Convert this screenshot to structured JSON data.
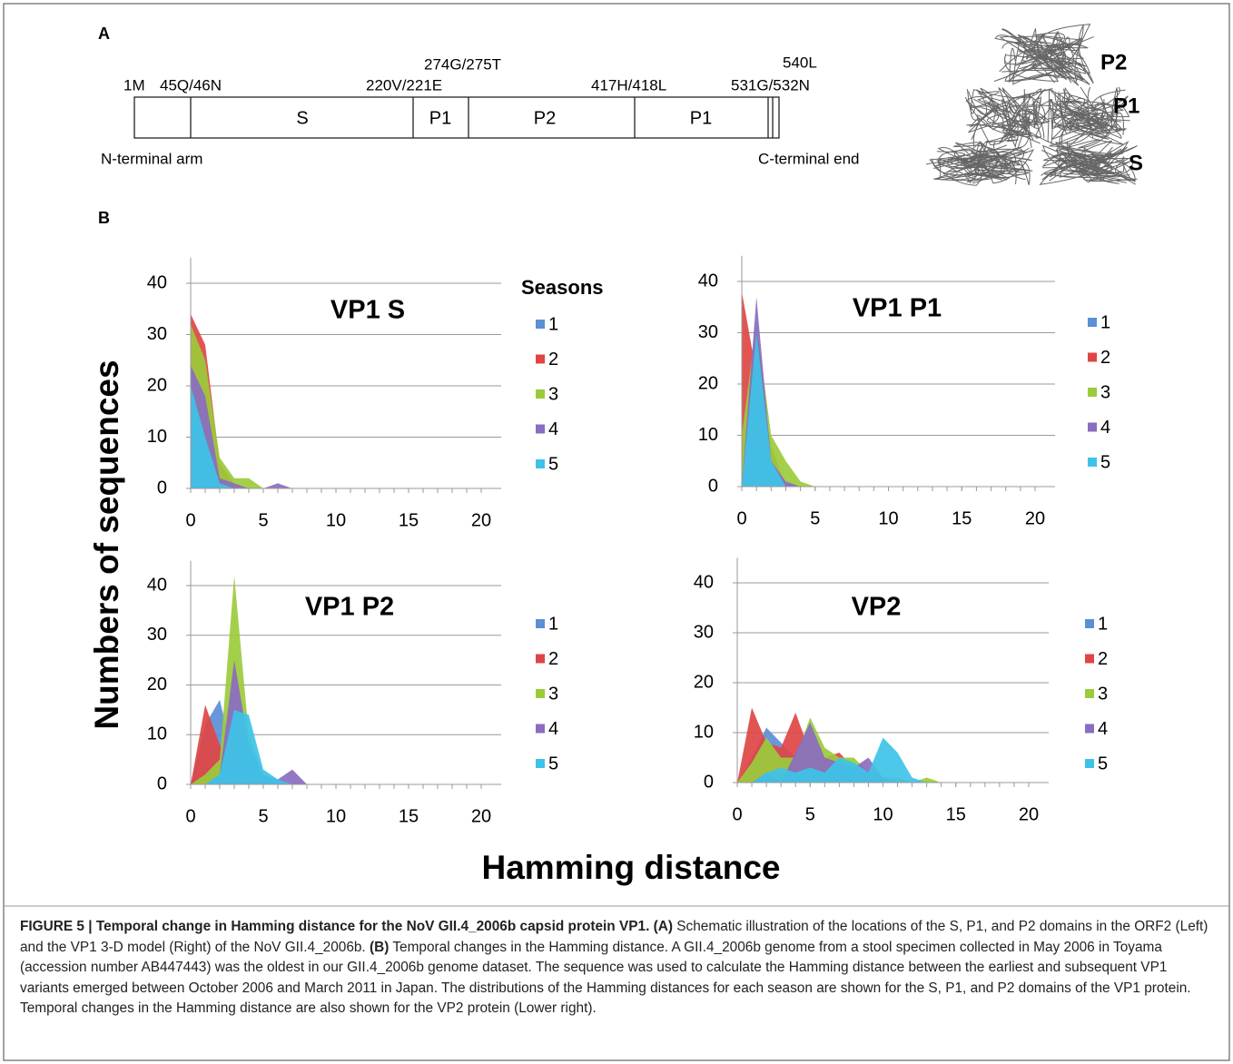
{
  "panel_a": {
    "label": "A",
    "positions": [
      "1M",
      "45Q/46N",
      "220V/221E",
      "274G/275T",
      "417H/418L",
      "531G/532N",
      "540L"
    ],
    "domains": [
      "S",
      "P1",
      "P2",
      "P1"
    ],
    "n_term": "N-terminal arm",
    "c_term": "C-terminal end",
    "model_labels": [
      "P2",
      "P1",
      "S"
    ]
  },
  "figure_b": {
    "label": "B",
    "y_label": "Numbers of sequences",
    "x_label": "Hamming distance"
  },
  "chart_data": [
    {
      "type": "area",
      "title": "VP1 S",
      "title_color": "#000000",
      "legend_title": "Seasons",
      "grid": true,
      "x": [
        0,
        1,
        2,
        3,
        4,
        5,
        6,
        7,
        8,
        9,
        10,
        11,
        12,
        13,
        14,
        15,
        16,
        17,
        18,
        19,
        20
      ],
      "xlim": [
        0,
        20
      ],
      "ylim": [
        0,
        45
      ],
      "xticks": [
        0,
        5,
        10,
        15,
        20
      ],
      "yticks": [
        0,
        10,
        20,
        30,
        40
      ],
      "series": [
        {
          "name": "1",
          "color": "#5b8fd6",
          "values": [
            22,
            12,
            1,
            0,
            0,
            0,
            0,
            0,
            0,
            0,
            0,
            0,
            0,
            0,
            0,
            0,
            0,
            0,
            0,
            0,
            0
          ]
        },
        {
          "name": "2",
          "color": "#e04545",
          "values": [
            34,
            28,
            5,
            1,
            0,
            0,
            0,
            0,
            0,
            0,
            0,
            0,
            0,
            0,
            0,
            0,
            0,
            0,
            0,
            0,
            0
          ]
        },
        {
          "name": "3",
          "color": "#9bcb3c",
          "values": [
            32,
            25,
            6,
            2,
            2,
            0,
            0,
            0,
            0,
            0,
            0,
            0,
            0,
            0,
            0,
            0,
            0,
            0,
            0,
            0,
            0
          ]
        },
        {
          "name": "4",
          "color": "#8a6cc0",
          "values": [
            24,
            18,
            2,
            1,
            0,
            0,
            1,
            0,
            0,
            0,
            0,
            0,
            0,
            0,
            0,
            0,
            0,
            0,
            0,
            0,
            0
          ]
        },
        {
          "name": "5",
          "color": "#3ec3e8",
          "values": [
            20,
            10,
            1,
            0,
            0,
            0,
            0,
            0,
            0,
            0,
            0,
            0,
            0,
            0,
            0,
            0,
            0,
            0,
            0,
            0,
            0
          ]
        }
      ]
    },
    {
      "type": "area",
      "title": "VP1 P1",
      "title_color": "#000000",
      "grid": true,
      "x": [
        0,
        1,
        2,
        3,
        4,
        5,
        6,
        7,
        8,
        9,
        10,
        11,
        12,
        13,
        14,
        15,
        16,
        17,
        18,
        19,
        20
      ],
      "xlim": [
        0,
        20
      ],
      "ylim": [
        0,
        45
      ],
      "xticks": [
        0,
        5,
        10,
        15,
        20
      ],
      "yticks": [
        0,
        10,
        20,
        30,
        40
      ],
      "series": [
        {
          "name": "1",
          "color": "#5b8fd6",
          "values": [
            0,
            30,
            5,
            0,
            0,
            0,
            0,
            0,
            0,
            0,
            0,
            0,
            0,
            0,
            0,
            0,
            0,
            0,
            0,
            0,
            0
          ]
        },
        {
          "name": "2",
          "color": "#e04545",
          "values": [
            38,
            22,
            8,
            0,
            0,
            0,
            0,
            0,
            0,
            0,
            0,
            0,
            0,
            0,
            0,
            0,
            0,
            0,
            0,
            0,
            0
          ]
        },
        {
          "name": "3",
          "color": "#9bcb3c",
          "values": [
            10,
            32,
            10,
            5,
            1,
            0,
            0,
            0,
            0,
            0,
            0,
            0,
            0,
            0,
            0,
            0,
            0,
            0,
            0,
            0,
            0
          ]
        },
        {
          "name": "4",
          "color": "#8a6cc0",
          "values": [
            0,
            37,
            5,
            1,
            0,
            0,
            0,
            0,
            0,
            0,
            0,
            0,
            0,
            0,
            0,
            0,
            0,
            0,
            0,
            0,
            0
          ]
        },
        {
          "name": "5",
          "color": "#3ec3e8",
          "values": [
            0,
            30,
            5,
            0,
            0,
            0,
            0,
            0,
            0,
            0,
            0,
            0,
            0,
            0,
            0,
            0,
            0,
            0,
            0,
            0,
            0
          ]
        }
      ]
    },
    {
      "type": "area",
      "title": "VP1 P2",
      "title_color": "#000000",
      "grid": true,
      "x": [
        0,
        1,
        2,
        3,
        4,
        5,
        6,
        7,
        8,
        9,
        10,
        11,
        12,
        13,
        14,
        15,
        16,
        17,
        18,
        19,
        20
      ],
      "xlim": [
        0,
        20
      ],
      "ylim": [
        0,
        45
      ],
      "xticks": [
        0,
        5,
        10,
        15,
        20
      ],
      "yticks": [
        0,
        10,
        20,
        30,
        40
      ],
      "series": [
        {
          "name": "1",
          "color": "#5b8fd6",
          "values": [
            0,
            12,
            17,
            5,
            1,
            0,
            0,
            0,
            0,
            0,
            0,
            0,
            0,
            0,
            0,
            0,
            0,
            0,
            0,
            0,
            0
          ]
        },
        {
          "name": "2",
          "color": "#e04545",
          "values": [
            0,
            16,
            8,
            3,
            1,
            0,
            0,
            0,
            0,
            0,
            0,
            0,
            0,
            0,
            0,
            0,
            0,
            0,
            0,
            0,
            0
          ]
        },
        {
          "name": "3",
          "color": "#9bcb3c",
          "values": [
            0,
            2,
            5,
            42,
            10,
            2,
            0,
            0,
            0,
            0,
            0,
            0,
            0,
            0,
            0,
            0,
            0,
            0,
            0,
            0,
            0
          ]
        },
        {
          "name": "4",
          "color": "#8a6cc0",
          "values": [
            0,
            0,
            2,
            25,
            8,
            2,
            1,
            3,
            0,
            0,
            0,
            0,
            0,
            0,
            0,
            0,
            0,
            0,
            0,
            0,
            0
          ]
        },
        {
          "name": "5",
          "color": "#3ec3e8",
          "values": [
            0,
            0,
            2,
            15,
            14,
            3,
            1,
            0,
            0,
            0,
            0,
            0,
            0,
            0,
            0,
            0,
            0,
            0,
            0,
            0,
            0
          ]
        }
      ]
    },
    {
      "type": "area",
      "title": "VP2",
      "title_color": "#1a7a1a",
      "grid": true,
      "x": [
        0,
        1,
        2,
        3,
        4,
        5,
        6,
        7,
        8,
        9,
        10,
        11,
        12,
        13,
        14,
        15,
        16,
        17,
        18,
        19,
        20
      ],
      "xlim": [
        0,
        20
      ],
      "ylim": [
        0,
        45
      ],
      "xticks": [
        0,
        5,
        10,
        15,
        20
      ],
      "yticks": [
        0,
        10,
        20,
        30,
        40
      ],
      "series": [
        {
          "name": "1",
          "color": "#5b8fd6",
          "values": [
            0,
            5,
            11,
            8,
            5,
            3,
            2,
            1,
            0,
            0,
            0,
            0,
            0,
            0,
            0,
            0,
            0,
            0,
            0,
            0,
            0
          ]
        },
        {
          "name": "2",
          "color": "#e04545",
          "values": [
            0,
            15,
            8,
            7,
            14,
            6,
            5,
            6,
            3,
            2,
            0,
            0,
            0,
            0,
            0,
            0,
            0,
            0,
            0,
            0,
            0
          ]
        },
        {
          "name": "3",
          "color": "#9bcb3c",
          "values": [
            0,
            4,
            9,
            5,
            5,
            13,
            7,
            5,
            5,
            2,
            1,
            1,
            0,
            1,
            0,
            0,
            0,
            0,
            0,
            0,
            0
          ]
        },
        {
          "name": "4",
          "color": "#8a6cc0",
          "values": [
            0,
            0,
            2,
            0,
            6,
            12,
            5,
            4,
            3,
            5,
            1,
            0,
            0,
            0,
            0,
            0,
            0,
            0,
            0,
            0,
            0
          ]
        },
        {
          "name": "5",
          "color": "#3ec3e8",
          "values": [
            0,
            0,
            2,
            3,
            2,
            3,
            2,
            5,
            4,
            2,
            9,
            6,
            1,
            0,
            0,
            0,
            0,
            0,
            0,
            0,
            0
          ]
        }
      ]
    }
  ],
  "caption": [
    {
      "text": "FIGURE 5 | Temporal change in Hamming distance for the NoV GII.4_2006b capsid protein VP1.",
      "bold": true
    },
    {
      "text": " ",
      "bold": false
    },
    {
      "text": "(A)",
      "bold": true
    },
    {
      "text": " Schematic illustration of the locations of the S, P1, and P2 domains in the ORF2 (Left) and the VP1 3-D model (Right) of the NoV GII.4_2006b. ",
      "bold": false
    },
    {
      "text": "(B)",
      "bold": true
    },
    {
      "text": " Temporal changes in the Hamming distance. A GII.4_2006b genome from a stool specimen collected in May 2006 in Toyama (accession number AB447443) was the oldest in our GII.4_2006b genome dataset. The sequence was used to calculate the Hamming distance between the earliest and subsequent VP1 variants emerged between October 2006 and March 2011 in Japan. The distributions of the Hamming distances for each season are shown for the S, P1, and P2 domains of the VP1 protein. Temporal changes in the Hamming distance are also shown for the VP2 protein (Lower right).",
      "bold": false
    }
  ]
}
